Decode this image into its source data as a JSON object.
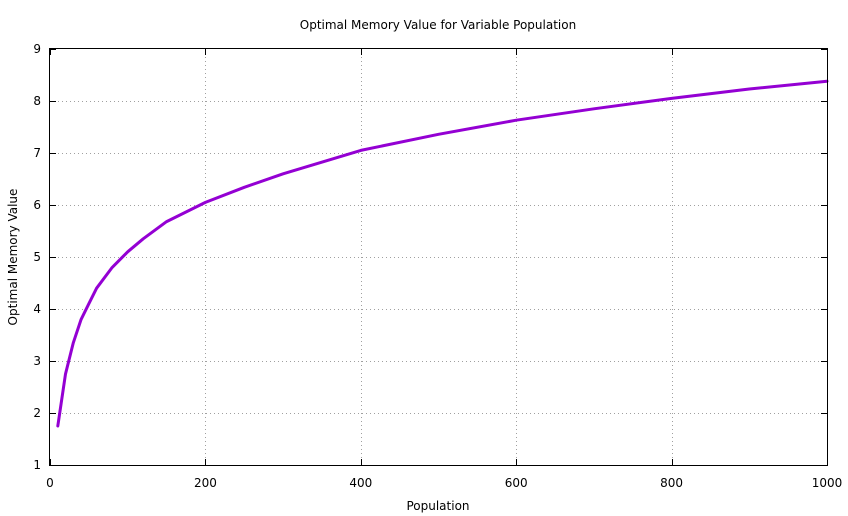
{
  "chart_data": {
    "type": "line",
    "title": "Optimal Memory Value for Variable Population",
    "xlabel": "Population",
    "ylabel": "Optimal Memory Value",
    "xlim": [
      0,
      1000
    ],
    "ylim": [
      1,
      9
    ],
    "x_ticks": [
      "0",
      "200",
      "400",
      "600",
      "800",
      "1000"
    ],
    "y_ticks": [
      "1",
      "2",
      "3",
      "4",
      "5",
      "6",
      "7",
      "8",
      "9"
    ],
    "grid": true,
    "legend": "none",
    "series": [
      {
        "color": "#9400d3",
        "x": [
          10,
          20,
          30,
          40,
          50,
          60,
          80,
          100,
          120,
          150,
          200,
          250,
          300,
          400,
          500,
          600,
          700,
          800,
          900,
          1000
        ],
        "y": [
          1.75,
          2.75,
          3.35,
          3.8,
          4.1,
          4.4,
          4.8,
          5.1,
          5.35,
          5.68,
          6.05,
          6.34,
          6.6,
          7.05,
          7.36,
          7.63,
          7.85,
          8.05,
          8.23,
          8.38
        ]
      }
    ]
  }
}
